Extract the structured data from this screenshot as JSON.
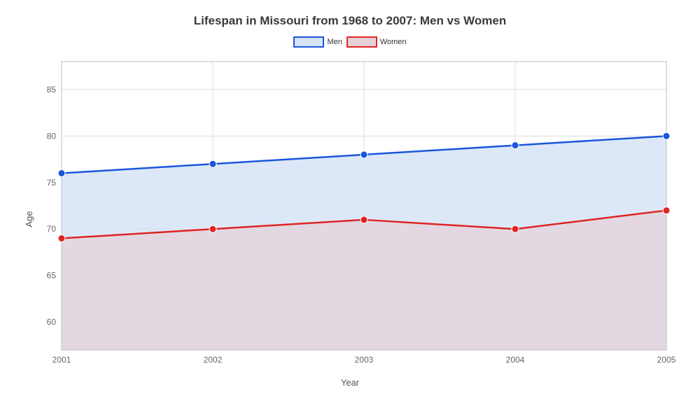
{
  "chart": {
    "type": "line-area",
    "title": "Lifespan in Missouri from 1968 to 2007: Men vs Women",
    "title_fontsize": 17,
    "title_color": "#3a3a3a",
    "xlabel": "Year",
    "ylabel": "Age",
    "label_fontsize": 13,
    "label_color": "#555555",
    "background_color": "#ffffff",
    "plot_background": "#ffffff",
    "grid_color": "#dddddd",
    "axis_line_color": "#bfbfbf",
    "tick_fontsize": 12,
    "tick_color": "#666666",
    "x_values": [
      2001,
      2002,
      2003,
      2004,
      2005
    ],
    "xlim": [
      2001,
      2005
    ],
    "ylim": [
      57,
      88
    ],
    "yticks": [
      60,
      65,
      70,
      75,
      80,
      85
    ],
    "series": [
      {
        "name": "Men",
        "values": [
          76,
          77,
          78,
          79,
          80
        ],
        "line_color": "#1a56db",
        "fill_color": "#d6e4f7",
        "fill_opacity": 0.85,
        "line_width": 2.5,
        "marker": "circle",
        "marker_size": 5,
        "marker_color": "#1a56db"
      },
      {
        "name": "Women",
        "values": [
          69,
          70,
          71,
          70,
          72
        ],
        "line_color": "#e02424",
        "fill_color": "#e6d1d8",
        "fill_opacity": 0.7,
        "line_width": 2.5,
        "marker": "circle",
        "marker_size": 5,
        "marker_color": "#e02424"
      }
    ],
    "legend": {
      "position": "top-center",
      "swatch_width": 44,
      "swatch_height": 16,
      "fontsize": 11
    }
  }
}
